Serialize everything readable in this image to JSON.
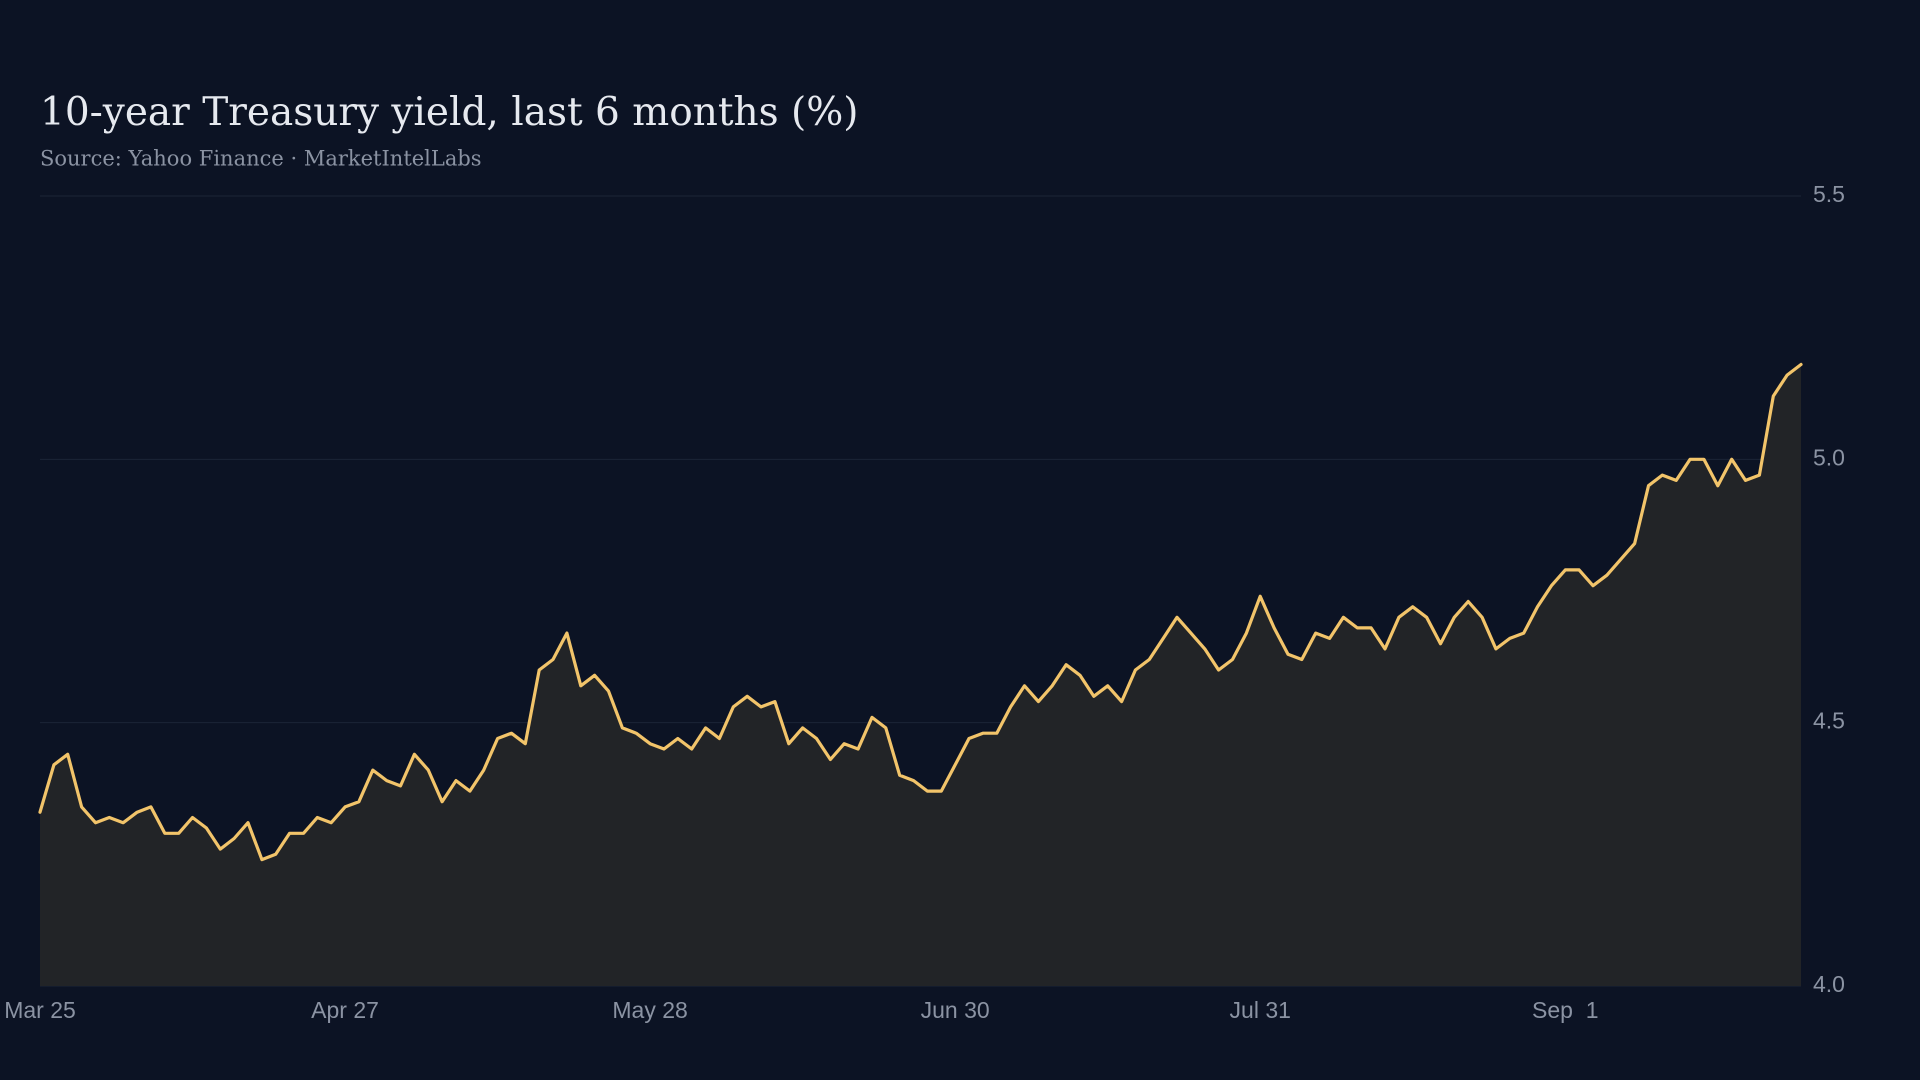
{
  "chart_data": {
    "type": "area",
    "title": "10-year Treasury yield, last 6 months (%)",
    "subtitle": "Source: Yahoo Finance · MarketIntelLabs",
    "categories": [
      "Mar 25",
      null,
      null,
      null,
      null,
      null,
      null,
      null,
      null,
      null,
      null,
      null,
      null,
      null,
      null,
      null,
      null,
      null,
      null,
      null,
      null,
      null,
      "Apr 27",
      null,
      null,
      null,
      null,
      null,
      null,
      null,
      null,
      null,
      null,
      null,
      null,
      null,
      null,
      null,
      null,
      null,
      null,
      null,
      null,
      null,
      "May 28",
      null,
      null,
      null,
      null,
      null,
      null,
      null,
      null,
      null,
      null,
      null,
      null,
      null,
      null,
      null,
      null,
      null,
      null,
      null,
      null,
      null,
      "Jun 30",
      null,
      null,
      null,
      null,
      null,
      null,
      null,
      null,
      null,
      null,
      null,
      null,
      null,
      null,
      null,
      null,
      null,
      null,
      null,
      null,
      null,
      "Jul 31",
      null,
      null,
      null,
      null,
      null,
      null,
      null,
      null,
      null,
      null,
      null,
      null,
      null,
      null,
      null,
      null,
      null,
      null,
      null,
      null,
      null,
      "Sep  1",
      null,
      null,
      null,
      null,
      null,
      null,
      null,
      null,
      null,
      null,
      null,
      null,
      null,
      null,
      null,
      null,
      null
    ],
    "series": [
      {
        "name": "10-year Treasury yield",
        "color": "#f2c46a",
        "fill": "#222427",
        "values": [
          4.33,
          4.42,
          4.44,
          4.34,
          4.31,
          4.32,
          4.31,
          4.33,
          4.34,
          4.29,
          4.29,
          4.32,
          4.3,
          4.26,
          4.28,
          4.31,
          4.24,
          4.25,
          4.29,
          4.29,
          4.32,
          4.31,
          4.34,
          4.35,
          4.41,
          4.39,
          4.38,
          4.44,
          4.41,
          4.35,
          4.39,
          4.37,
          4.41,
          4.47,
          4.48,
          4.46,
          4.6,
          4.62,
          4.67,
          4.57,
          4.59,
          4.56,
          4.49,
          4.48,
          4.46,
          4.45,
          4.47,
          4.45,
          4.49,
          4.47,
          4.53,
          4.55,
          4.53,
          4.54,
          4.46,
          4.49,
          4.47,
          4.43,
          4.46,
          4.45,
          4.51,
          4.49,
          4.4,
          4.39,
          4.37,
          4.37,
          4.42,
          4.47,
          4.48,
          4.48,
          4.53,
          4.57,
          4.54,
          4.57,
          4.61,
          4.59,
          4.55,
          4.57,
          4.54,
          4.6,
          4.62,
          4.66,
          4.7,
          4.67,
          4.64,
          4.6,
          4.62,
          4.67,
          4.74,
          4.68,
          4.63,
          4.62,
          4.67,
          4.66,
          4.7,
          4.68,
          4.68,
          4.64,
          4.7,
          4.72,
          4.7,
          4.65,
          4.7,
          4.73,
          4.7,
          4.64,
          4.66,
          4.67,
          4.72,
          4.76,
          4.79,
          4.79,
          4.76,
          4.78,
          4.81,
          4.84,
          4.95,
          4.97,
          4.96,
          5.0,
          5.0,
          4.95,
          5.0,
          4.96,
          4.97,
          5.12,
          5.16,
          5.18
        ]
      }
    ],
    "ylim": [
      4.0,
      5.5
    ],
    "yticks": [
      {
        "value": 4.0,
        "label": "4.0"
      },
      4.5,
      {
        "value": 5.0,
        "label": "5.0"
      },
      5.5
    ],
    "grid": true
  }
}
